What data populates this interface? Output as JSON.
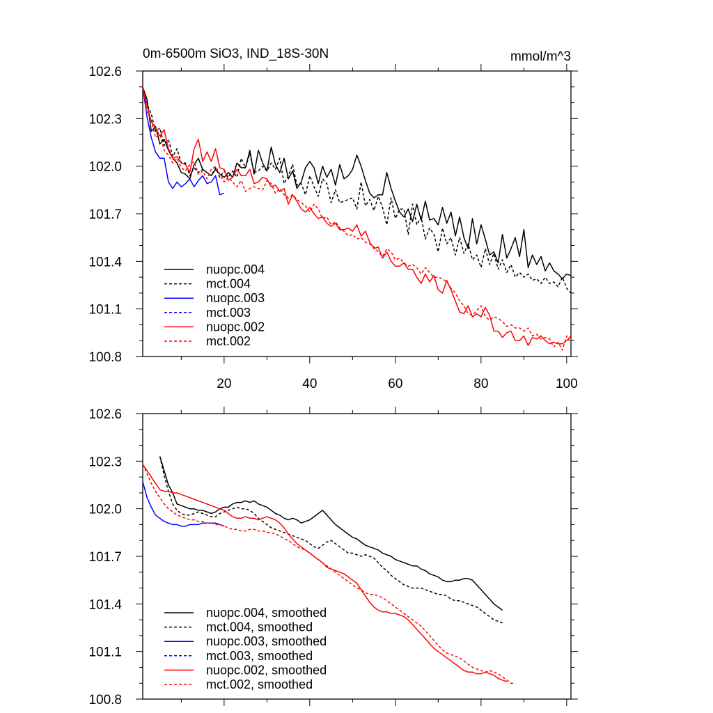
{
  "chart_data": [
    {
      "type": "line",
      "title": "0m-6500m SiO3, IND_18S-30N",
      "units": "mmol/m^3",
      "xlim": [
        1,
        101
      ],
      "ylim": [
        100.8,
        102.6
      ],
      "xticks": [
        20,
        40,
        60,
        80,
        100
      ],
      "yticks": [
        100.8,
        101.1,
        101.4,
        101.7,
        102.0,
        102.3,
        102.6
      ],
      "ytick_labels": [
        "100.8",
        "101.1",
        "101.4",
        "101.7",
        "102.0",
        "102.3",
        "102.6"
      ],
      "xtick_labels": [
        "20",
        "40",
        "60",
        "80",
        "100"
      ],
      "legend_position": "bottom-left",
      "series": [
        {
          "name": "nuopc.004",
          "color": "#000000",
          "dash": "solid",
          "x_start": 1,
          "values": [
            102.5,
            102.42,
            102.22,
            102.25,
            102.14,
            102.17,
            102.1,
            102.05,
            102.02,
            101.96,
            101.95,
            101.92,
            102.01,
            102.05,
            101.98,
            101.96,
            101.94,
            101.98,
            101.95,
            101.93,
            101.96,
            101.93,
            102.02,
            101.99,
            101.99,
            102.1,
            101.95,
            102.1,
            102.02,
            101.97,
            102.12,
            102.01,
            101.96,
            102.05,
            101.92,
            101.97,
            101.86,
            101.9,
            101.99,
            102.03,
            101.99,
            101.89,
            102.0,
            101.93,
            101.98,
            101.88,
            102.01,
            101.92,
            101.94,
            101.98,
            102.07,
            102.0,
            101.91,
            101.83,
            101.8,
            101.82,
            101.82,
            101.96,
            101.86,
            101.78,
            101.71,
            101.68,
            101.73,
            101.65,
            101.76,
            101.66,
            101.78,
            101.66,
            101.67,
            101.63,
            101.74,
            101.64,
            101.71,
            101.56,
            101.68,
            101.55,
            101.48,
            101.67,
            101.51,
            101.63,
            101.54,
            101.44,
            101.46,
            101.39,
            101.57,
            101.42,
            101.48,
            101.55,
            101.43,
            101.6,
            101.36,
            101.44,
            101.38,
            101.43,
            101.34,
            101.39,
            101.34,
            101.32,
            101.29,
            101.32,
            101.31
          ]
        },
        {
          "name": "mct.004",
          "color": "#000000",
          "dash": "dashed",
          "x_start": 1,
          "values": [
            102.5,
            102.39,
            102.33,
            102.22,
            102.24,
            102.13,
            102.17,
            102.06,
            102.11,
            102.02,
            102.02,
            101.94,
            101.99,
            101.96,
            101.98,
            101.96,
            101.94,
            101.99,
            101.93,
            101.97,
            101.93,
            101.97,
            101.93,
            102.05,
            101.99,
            102.08,
            101.96,
            101.97,
            102.0,
            101.97,
            102.02,
            101.98,
            102.05,
            101.89,
            101.94,
            102.01,
            101.88,
            101.89,
            101.82,
            101.94,
            101.87,
            101.81,
            101.92,
            101.89,
            101.77,
            101.85,
            101.77,
            101.78,
            101.79,
            101.8,
            101.73,
            101.9,
            101.75,
            101.79,
            101.72,
            101.81,
            101.74,
            101.63,
            101.8,
            101.67,
            101.73,
            101.73,
            101.57,
            101.76,
            101.63,
            101.68,
            101.54,
            101.61,
            101.57,
            101.46,
            101.61,
            101.51,
            101.55,
            101.44,
            101.55,
            101.45,
            101.51,
            101.41,
            101.44,
            101.36,
            101.48,
            101.38,
            101.45,
            101.35,
            101.41,
            101.33,
            101.38,
            101.3,
            101.33,
            101.3,
            101.32,
            101.28,
            101.29,
            101.26,
            101.3,
            101.26,
            101.27,
            101.24,
            101.3,
            101.23,
            101.2
          ]
        },
        {
          "name": "nuopc.003",
          "color": "#0000ff",
          "dash": "solid",
          "x_start": 1,
          "values": [
            102.5,
            102.31,
            102.18,
            102.09,
            102.05,
            102.05,
            101.9,
            101.86,
            101.9,
            101.87,
            101.89,
            101.92,
            101.87,
            101.91,
            101.94,
            101.89,
            101.9,
            101.94,
            101.82,
            101.83
          ]
        },
        {
          "name": "mct.003",
          "color": "#0000ff",
          "dash": "dashed",
          "x_start": 1,
          "values": []
        },
        {
          "name": "nuopc.002",
          "color": "#ff0000",
          "dash": "solid",
          "x_start": 1,
          "values": [
            102.5,
            102.38,
            102.28,
            102.24,
            102.19,
            102.23,
            102.11,
            102.05,
            102.06,
            102.02,
            102.01,
            101.96,
            102.11,
            102.17,
            102.03,
            102.09,
            102.03,
            102.11,
            101.99,
            101.98,
            101.91,
            101.93,
            101.98,
            101.94,
            101.94,
            101.98,
            101.89,
            101.9,
            101.93,
            101.92,
            101.87,
            101.88,
            101.84,
            101.86,
            101.76,
            101.82,
            101.78,
            101.73,
            101.71,
            101.74,
            101.7,
            101.67,
            101.68,
            101.64,
            101.62,
            101.64,
            101.6,
            101.6,
            101.61,
            101.59,
            101.63,
            101.56,
            101.59,
            101.52,
            101.48,
            101.49,
            101.42,
            101.46,
            101.4,
            101.37,
            101.37,
            101.39,
            101.35,
            101.35,
            101.3,
            101.26,
            101.32,
            101.27,
            101.31,
            101.22,
            101.2,
            101.28,
            101.22,
            101.15,
            101.08,
            101.07,
            101.12,
            101.05,
            101.07,
            101.05,
            101.11,
            101.06,
            100.96,
            100.96,
            100.92,
            100.95,
            100.96,
            100.9,
            100.9,
            100.93,
            100.87,
            100.92,
            100.91,
            100.93,
            100.9,
            100.88,
            100.89,
            100.88,
            100.88,
            100.9,
            100.93
          ]
        },
        {
          "name": "mct.002",
          "color": "#ff0000",
          "dash": "dashed",
          "x_start": 1,
          "values": [
            102.5,
            102.34,
            102.29,
            102.18,
            102.2,
            102.1,
            102.07,
            102.02,
            102.05,
            101.99,
            101.97,
            102.01,
            102.03,
            101.95,
            101.97,
            101.92,
            101.98,
            102.0,
            101.95,
            101.9,
            101.93,
            101.9,
            101.87,
            101.91,
            101.84,
            101.86,
            101.87,
            101.86,
            101.85,
            101.91,
            101.89,
            101.83,
            101.86,
            101.82,
            101.8,
            101.82,
            101.79,
            101.77,
            101.75,
            101.71,
            101.76,
            101.73,
            101.67,
            101.68,
            101.63,
            101.65,
            101.61,
            101.59,
            101.56,
            101.57,
            101.54,
            101.55,
            101.52,
            101.51,
            101.49,
            101.46,
            101.43,
            101.48,
            101.46,
            101.41,
            101.42,
            101.39,
            101.37,
            101.38,
            101.36,
            101.32,
            101.36,
            101.33,
            101.3,
            101.3,
            101.29,
            101.27,
            101.23,
            101.2,
            101.15,
            101.12,
            101.07,
            101.06,
            101.09,
            101.12,
            101.05,
            101.03,
            101.05,
            101.04,
            101.02,
            100.99,
            101.0,
            100.98,
            100.98,
            100.96,
            100.98,
            100.93,
            100.94,
            100.91,
            100.92,
            100.91,
            100.86,
            100.89,
            100.84,
            100.93,
            100.88
          ]
        }
      ]
    },
    {
      "type": "line",
      "title": "",
      "units": "",
      "xlim": [
        1,
        101
      ],
      "ylim": [
        100.8,
        102.6
      ],
      "xticks": [
        20,
        40,
        60,
        80,
        100
      ],
      "yticks": [
        100.8,
        101.1,
        101.4,
        101.7,
        102.0,
        102.3,
        102.6
      ],
      "ytick_labels": [
        "100.8",
        "101.1",
        "101.4",
        "101.7",
        "102.0",
        "102.3",
        "102.6"
      ],
      "xtick_labels": [],
      "legend_position": "bottom-left",
      "series": [
        {
          "name": "nuopc.004, smoothed",
          "color": "#000000",
          "dash": "solid",
          "x_start": 5,
          "values": [
            102.33,
            102.24,
            102.15,
            102.1,
            102.03,
            102.02,
            102.01,
            102.0,
            102.0,
            101.99,
            101.99,
            101.98,
            101.97,
            101.98,
            102.0,
            102.01,
            102.01,
            102.03,
            102.04,
            102.04,
            102.05,
            102.04,
            102.05,
            102.03,
            102.02,
            102.01,
            101.99,
            101.97,
            101.96,
            101.94,
            101.93,
            101.94,
            101.93,
            101.91,
            101.92,
            101.93,
            101.95,
            101.97,
            101.99,
            101.96,
            101.93,
            101.9,
            101.88,
            101.86,
            101.84,
            101.82,
            101.81,
            101.79,
            101.77,
            101.76,
            101.75,
            101.74,
            101.72,
            101.71,
            101.7,
            101.68,
            101.67,
            101.66,
            101.65,
            101.64,
            101.64,
            101.62,
            101.61,
            101.59,
            101.58,
            101.57,
            101.55,
            101.54,
            101.54,
            101.55,
            101.55,
            101.56,
            101.56,
            101.55,
            101.52,
            101.49,
            101.46,
            101.43,
            101.4,
            101.38,
            101.36
          ]
        },
        {
          "name": "mct.004, smoothed",
          "color": "#000000",
          "dash": "dashed",
          "x_start": 5,
          "values": [
            102.33,
            102.21,
            102.11,
            102.03,
            101.99,
            101.97,
            101.96,
            101.96,
            101.97,
            101.98,
            101.97,
            101.96,
            101.95,
            101.95,
            101.97,
            101.98,
            101.99,
            102.0,
            102.01,
            102.0,
            102.0,
            101.99,
            101.97,
            101.94,
            101.92,
            101.9,
            101.88,
            101.87,
            101.86,
            101.85,
            101.84,
            101.83,
            101.82,
            101.81,
            101.8,
            101.78,
            101.76,
            101.75,
            101.77,
            101.79,
            101.8,
            101.78,
            101.76,
            101.74,
            101.72,
            101.72,
            101.71,
            101.7,
            101.71,
            101.7,
            101.69,
            101.66,
            101.63,
            101.61,
            101.58,
            101.56,
            101.54,
            101.52,
            101.51,
            101.5,
            101.5,
            101.5,
            101.49,
            101.48,
            101.47,
            101.46,
            101.46,
            101.45,
            101.43,
            101.42,
            101.42,
            101.41,
            101.4,
            101.39,
            101.38,
            101.36,
            101.34,
            101.32,
            101.3,
            101.29,
            101.28
          ]
        },
        {
          "name": "nuopc.003, smoothed",
          "color": "#0000ff",
          "dash": "solid",
          "x_start": 1,
          "values": [
            102.17,
            102.07,
            102.01,
            101.96,
            101.94,
            101.92,
            101.91,
            101.9,
            101.9,
            101.89,
            101.89,
            101.9,
            101.9,
            101.9,
            101.91,
            101.91,
            101.91,
            101.91,
            101.9,
            101.89
          ]
        },
        {
          "name": "mct.003, smoothed",
          "color": "#0000ff",
          "dash": "dashed",
          "x_start": 1,
          "values": []
        },
        {
          "name": "nuopc.002, smoothed",
          "color": "#ff0000",
          "dash": "solid",
          "x_start": 1,
          "values": [
            102.28,
            102.24,
            102.2,
            102.16,
            102.12,
            102.11,
            102.11,
            102.1,
            102.1,
            102.09,
            102.08,
            102.07,
            102.06,
            102.05,
            102.04,
            102.03,
            102.02,
            102.01,
            102.0,
            101.99,
            101.97,
            101.95,
            101.94,
            101.94,
            101.95,
            101.94,
            101.94,
            101.93,
            101.94,
            101.95,
            101.94,
            101.93,
            101.91,
            101.88,
            101.84,
            101.81,
            101.78,
            101.76,
            101.74,
            101.72,
            101.7,
            101.68,
            101.66,
            101.63,
            101.62,
            101.61,
            101.6,
            101.59,
            101.57,
            101.55,
            101.53,
            101.49,
            101.45,
            101.41,
            101.38,
            101.36,
            101.35,
            101.35,
            101.34,
            101.34,
            101.33,
            101.32,
            101.3,
            101.27,
            101.24,
            101.21,
            101.18,
            101.15,
            101.12,
            101.1,
            101.08,
            101.06,
            101.04,
            101.02,
            101.0,
            100.98,
            100.97,
            100.97,
            100.96,
            100.96,
            100.97,
            100.96,
            100.95,
            100.93,
            100.92,
            100.91
          ]
        },
        {
          "name": "mct.002, smoothed",
          "color": "#ff0000",
          "dash": "dashed",
          "x_start": 1,
          "values": [
            102.28,
            102.22,
            102.16,
            102.11,
            102.07,
            102.03,
            102.0,
            101.98,
            101.96,
            101.95,
            101.94,
            101.93,
            101.93,
            101.92,
            101.92,
            101.91,
            101.91,
            101.9,
            101.9,
            101.89,
            101.88,
            101.87,
            101.87,
            101.86,
            101.86,
            101.87,
            101.87,
            101.86,
            101.86,
            101.85,
            101.85,
            101.84,
            101.83,
            101.81,
            101.8,
            101.78,
            101.76,
            101.75,
            101.74,
            101.72,
            101.7,
            101.68,
            101.66,
            101.64,
            101.62,
            101.6,
            101.58,
            101.56,
            101.54,
            101.52,
            101.5,
            101.49,
            101.47,
            101.46,
            101.46,
            101.45,
            101.44,
            101.42,
            101.4,
            101.38,
            101.36,
            101.34,
            101.32,
            101.3,
            101.28,
            101.26,
            101.23,
            101.2,
            101.17,
            101.14,
            101.11,
            101.09,
            101.08,
            101.07,
            101.06,
            101.04,
            101.02,
            101.0,
            100.99,
            100.98,
            100.97,
            100.98,
            100.97,
            100.96,
            100.94,
            100.92,
            100.9,
            100.9
          ]
        }
      ]
    }
  ]
}
